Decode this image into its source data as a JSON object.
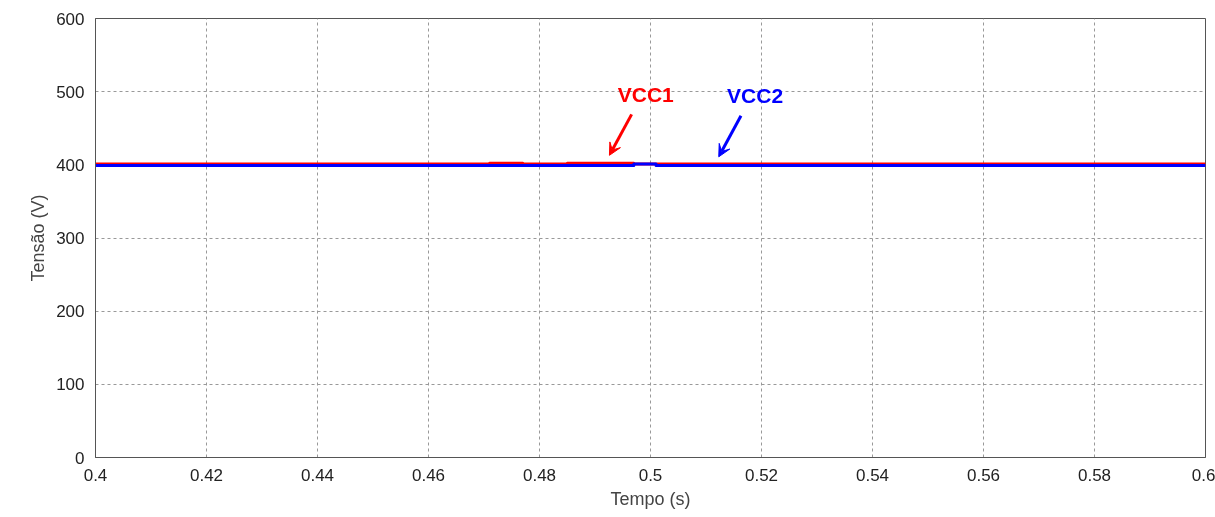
{
  "chart_data": {
    "type": "line",
    "xlabel": "Tempo (s)",
    "ylabel": "Tensão (V)",
    "xlim": [
      0.4,
      0.6
    ],
    "ylim": [
      0,
      600
    ],
    "xticks": [
      0.4,
      0.42,
      0.44,
      0.46,
      0.48,
      0.5,
      0.52,
      0.54,
      0.56,
      0.58,
      0.6
    ],
    "yticks": [
      0,
      100,
      200,
      300,
      400,
      500,
      600
    ],
    "grid": true,
    "marker": "none",
    "line_style": "solid",
    "series": [
      {
        "color": "#ff0000",
        "x": [
          0.4,
          0.471,
          0.471,
          0.477,
          0.477,
          0.485,
          0.485,
          0.497,
          0.497,
          0.6
        ],
        "values": [
          401,
          401,
          402,
          402,
          401,
          401,
          402,
          402,
          401,
          401
        ]
      },
      {
        "color": "#0000ff",
        "x": [
          0.4,
          0.497,
          0.497,
          0.501,
          0.501,
          0.6
        ],
        "values": [
          399,
          399,
          401,
          401,
          399,
          399
        ]
      }
    ],
    "annotations": [
      {
        "text": "VCC1",
        "x": 0.4926,
        "y": 401
      },
      {
        "text": "VCC2",
        "x": 0.5123,
        "y": 399
      }
    ]
  }
}
